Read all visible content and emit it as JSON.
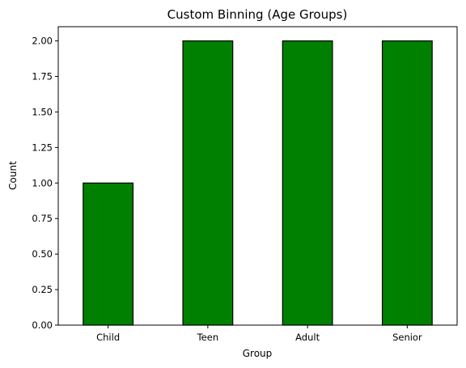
{
  "chart_data": {
    "type": "bar",
    "title": "Custom Binning (Age Groups)",
    "xlabel": "Group",
    "ylabel": "Count",
    "categories": [
      "Child",
      "Teen",
      "Adult",
      "Senior"
    ],
    "values": [
      1,
      2,
      2,
      2
    ],
    "ylim": [
      0,
      2.1
    ],
    "yticks": [
      "0.00",
      "0.25",
      "0.50",
      "0.75",
      "1.00",
      "1.25",
      "1.50",
      "1.75",
      "2.00"
    ],
    "grid": false,
    "bar_color": "#008000",
    "edge_color": "#000000"
  }
}
